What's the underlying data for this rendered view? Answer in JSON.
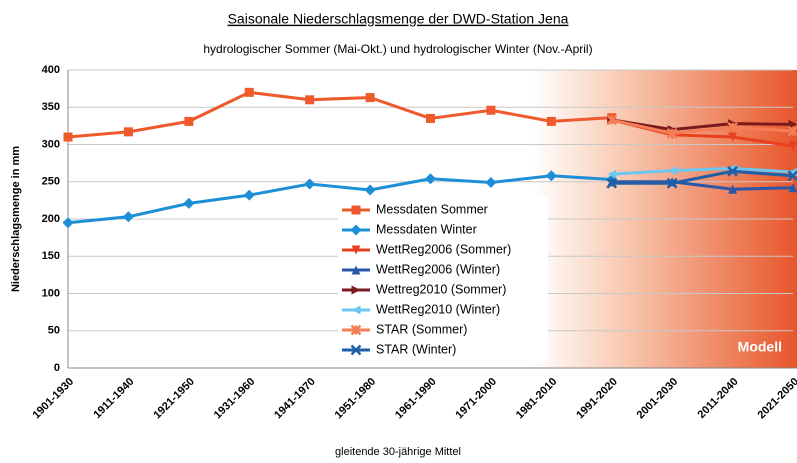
{
  "chart_data": {
    "type": "line",
    "title": "Saisonale Niederschlagsmenge der DWD-Station Jena",
    "subtitle": "hydrologischer Sommer (Mai-Okt.) und hydrologischer Winter (Nov.-April)",
    "x_label": "gleitende 30-jährige Mittel",
    "y_label": "Niederschlagsmenge in mm",
    "annotation": "Modell",
    "categories": [
      "1901-1930",
      "1911-1940",
      "1921-1950",
      "1931-1960",
      "1941-1970",
      "1951-1980",
      "1961-1990",
      "1971-2000",
      "1981-2010",
      "1991-2020",
      "2001-2030",
      "2011-2040",
      "2021-2050"
    ],
    "ylim": [
      0,
      400
    ],
    "yticks": [
      0,
      50,
      100,
      150,
      200,
      250,
      300,
      350,
      400
    ],
    "grid": true,
    "series": [
      {
        "name": "Messdaten Sommer",
        "color": "#ee5a2b",
        "marker": "square",
        "values": [
          310,
          317,
          331,
          370,
          360,
          363,
          335,
          346,
          331,
          336,
          null,
          null,
          null
        ]
      },
      {
        "name": "Messdaten Winter",
        "color": "#1d8fd6",
        "marker": "diamond",
        "values": [
          195,
          203,
          221,
          232,
          247,
          239,
          254,
          249,
          258,
          253,
          null,
          null,
          null
        ]
      },
      {
        "name": "WettReg2006 (Sommer)",
        "color": "#e8401f",
        "marker": "tri-down",
        "values": [
          null,
          null,
          null,
          null,
          null,
          null,
          null,
          null,
          null,
          333,
          313,
          310,
          298
        ]
      },
      {
        "name": "WettReg2006 (Winter)",
        "color": "#2a57a8",
        "marker": "tri-up",
        "values": [
          null,
          null,
          null,
          null,
          null,
          null,
          null,
          null,
          null,
          250,
          250,
          240,
          242
        ]
      },
      {
        "name": "Wettreg2010 (Sommer)",
        "color": "#7b1a1e",
        "marker": "tri-right",
        "values": [
          null,
          null,
          null,
          null,
          null,
          null,
          null,
          null,
          null,
          333,
          320,
          328,
          327
        ]
      },
      {
        "name": "WettReg2010 (Winter)",
        "color": "#6cc8f0",
        "marker": "tri-left",
        "values": [
          null,
          null,
          null,
          null,
          null,
          null,
          null,
          null,
          null,
          260,
          265,
          268,
          263
        ]
      },
      {
        "name": "STAR (Sommer)",
        "color": "#f47d55",
        "marker": "star",
        "values": [
          null,
          null,
          null,
          null,
          null,
          null,
          null,
          null,
          null,
          333,
          315,
          323,
          318
        ]
      },
      {
        "name": "STAR (Winter)",
        "color": "#1f5fa8",
        "marker": "cross",
        "values": [
          null,
          null,
          null,
          null,
          null,
          null,
          null,
          null,
          null,
          248,
          248,
          264,
          258
        ]
      }
    ]
  }
}
